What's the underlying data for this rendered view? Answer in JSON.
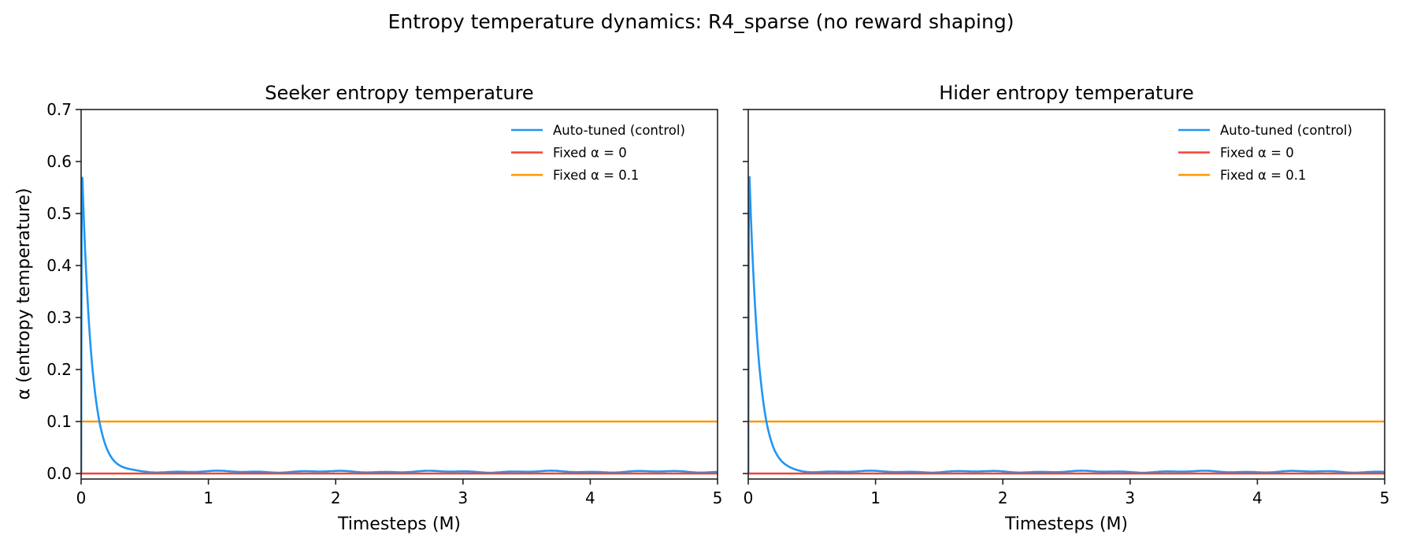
{
  "figure": {
    "title": "Entropy temperature dynamics: R4_sparse (no reward shaping)"
  },
  "colors": {
    "auto": "#2196f3",
    "fixed0": "#f44336",
    "fixed01": "#ff9800",
    "axis": "#222222"
  },
  "chart_data": [
    {
      "type": "line",
      "title": "Seeker entropy temperature",
      "xlabel": "Timesteps (M)",
      "ylabel": "α (entropy temperature)",
      "xlim": [
        0,
        5
      ],
      "ylim": [
        -0.01,
        0.7
      ],
      "xticks": [
        "0",
        "1",
        "2",
        "3",
        "4",
        "5"
      ],
      "yticks": [
        "0.0",
        "0.1",
        "0.2",
        "0.3",
        "0.4",
        "0.5",
        "0.6",
        "0.7"
      ],
      "grid": false,
      "legend_position": "upper right",
      "series": [
        {
          "name": "Auto-tuned (control)",
          "color": "#2196f3",
          "peak": 0.565,
          "decay_tau": 0.075,
          "x": [
            0.0,
            0.01,
            0.05,
            0.1,
            0.13,
            0.2,
            0.3,
            0.4,
            0.5,
            0.75,
            1.0,
            1.5,
            2.0,
            2.5,
            3.0,
            3.5,
            4.0,
            4.5,
            5.0
          ],
          "y": [
            0.0,
            0.565,
            0.33,
            0.16,
            0.1,
            0.045,
            0.015,
            0.006,
            0.004,
            0.005,
            0.004,
            0.004,
            0.004,
            0.004,
            0.003,
            0.004,
            0.003,
            0.003,
            0.003
          ]
        },
        {
          "name": "Fixed α = 0",
          "color": "#f44336",
          "x": [
            0,
            5
          ],
          "y": [
            0,
            0
          ]
        },
        {
          "name": "Fixed α = 0.1",
          "color": "#ff9800",
          "x": [
            0,
            0,
            5
          ],
          "y": [
            0,
            0.1,
            0.1
          ]
        }
      ]
    },
    {
      "type": "line",
      "title": "Hider entropy temperature",
      "xlabel": "Timesteps (M)",
      "ylabel": "",
      "xlim": [
        0,
        5
      ],
      "ylim": [
        -0.01,
        0.7
      ],
      "xticks": [
        "0",
        "1",
        "2",
        "3",
        "4",
        "5"
      ],
      "yticks": [],
      "grid": false,
      "legend_position": "upper right",
      "series": [
        {
          "name": "Auto-tuned (control)",
          "color": "#2196f3",
          "peak": 0.565,
          "decay_tau": 0.075,
          "x": [
            0.0,
            0.01,
            0.05,
            0.1,
            0.13,
            0.2,
            0.3,
            0.4,
            0.5,
            0.75,
            1.0,
            1.5,
            2.0,
            2.5,
            3.0,
            3.5,
            4.0,
            4.5,
            5.0
          ],
          "y": [
            0.0,
            0.565,
            0.33,
            0.16,
            0.1,
            0.045,
            0.015,
            0.006,
            0.004,
            0.004,
            0.004,
            0.004,
            0.004,
            0.004,
            0.004,
            0.005,
            0.004,
            0.004,
            0.003
          ]
        },
        {
          "name": "Fixed α = 0",
          "color": "#f44336",
          "x": [
            0,
            5
          ],
          "y": [
            0,
            0
          ]
        },
        {
          "name": "Fixed α = 0.1",
          "color": "#ff9800",
          "x": [
            0,
            0,
            5
          ],
          "y": [
            0,
            0.1,
            0.1
          ]
        }
      ]
    }
  ]
}
